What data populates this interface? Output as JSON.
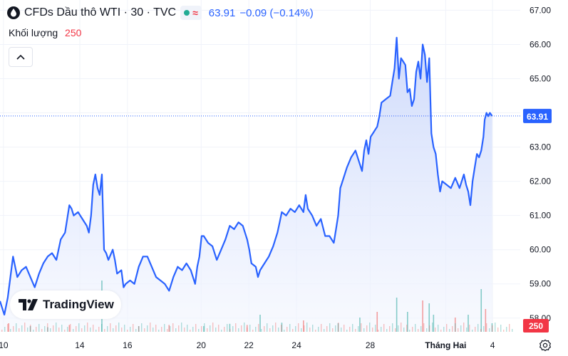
{
  "header": {
    "symbol_title": "CFDs Dầu thô WTI · 30 · TVC",
    "approx_symbol": "≈",
    "last_price": "63.91",
    "change": "−0.09 (−0.14%)",
    "volume_label": "Khối lượng",
    "volume_value": "250"
  },
  "logo_text": "TradingView",
  "icons": [
    "oil-drop-icon",
    "market-open-dot-icon",
    "chevron-up-icon",
    "tradingview-logo-icon",
    "gear-icon"
  ],
  "colors": {
    "line": "#2962ff",
    "fill_top": "#c9d6fb",
    "fill_bottom": "#f3f6fe",
    "up_volume": "#26a69a",
    "down_volume": "#ef5350",
    "axis_text": "#131722",
    "price_label_bg": "#2962ff",
    "volume_label_bg": "#f23645"
  },
  "chart_data": {
    "type": "area",
    "series_name": "",
    "ylim": [
      57.6,
      67.3
    ],
    "y_ticks": [
      "67.00",
      "66.00",
      "65.00",
      "64.00",
      "63.00",
      "62.00",
      "61.00",
      "60.00",
      "59.00",
      "58.00"
    ],
    "y_tick_values": [
      67,
      66,
      65,
      64,
      63,
      62,
      61,
      60,
      59,
      58
    ],
    "x_ticks": [
      "10",
      "14",
      "16",
      "20",
      "22",
      "24",
      "28",
      "Tháng Hai",
      "4"
    ],
    "x_tick_values": [
      0.08,
      1.84,
      2.94,
      4.64,
      5.74,
      6.84,
      8.54,
      10.28,
      11.36
    ],
    "last_value_label": "63.91",
    "last_volume_label": "250",
    "x_range": [
      0,
      12.0
    ],
    "points": [
      [
        0.0,
        58.5
      ],
      [
        0.05,
        58.3
      ],
      [
        0.1,
        58.1
      ],
      [
        0.18,
        58.6
      ],
      [
        0.25,
        59.3
      ],
      [
        0.3,
        59.8
      ],
      [
        0.35,
        59.5
      ],
      [
        0.4,
        59.2
      ],
      [
        0.5,
        59.4
      ],
      [
        0.6,
        59.5
      ],
      [
        0.7,
        59.2
      ],
      [
        0.8,
        58.9
      ],
      [
        0.9,
        59.3
      ],
      [
        1.0,
        59.6
      ],
      [
        1.1,
        59.8
      ],
      [
        1.2,
        59.9
      ],
      [
        1.3,
        59.7
      ],
      [
        1.4,
        60.3
      ],
      [
        1.5,
        60.5
      ],
      [
        1.55,
        60.9
      ],
      [
        1.6,
        61.3
      ],
      [
        1.65,
        61.2
      ],
      [
        1.7,
        61.0
      ],
      [
        1.8,
        61.1
      ],
      [
        1.9,
        60.9
      ],
      [
        2.0,
        60.7
      ],
      [
        2.05,
        60.5
      ],
      [
        2.1,
        61.0
      ],
      [
        2.15,
        61.9
      ],
      [
        2.2,
        62.2
      ],
      [
        2.25,
        61.8
      ],
      [
        2.3,
        61.6
      ],
      [
        2.35,
        62.2
      ],
      [
        2.4,
        60.0
      ],
      [
        2.45,
        59.9
      ],
      [
        2.5,
        59.7
      ],
      [
        2.6,
        60.0
      ],
      [
        2.65,
        59.7
      ],
      [
        2.7,
        59.3
      ],
      [
        2.8,
        59.4
      ],
      [
        2.85,
        58.9
      ],
      [
        2.9,
        59.0
      ],
      [
        3.0,
        59.1
      ],
      [
        3.1,
        59.0
      ],
      [
        3.2,
        59.5
      ],
      [
        3.3,
        59.8
      ],
      [
        3.4,
        59.8
      ],
      [
        3.5,
        59.5
      ],
      [
        3.6,
        59.2
      ],
      [
        3.7,
        59.1
      ],
      [
        3.8,
        59.0
      ],
      [
        3.9,
        58.8
      ],
      [
        4.0,
        59.2
      ],
      [
        4.1,
        59.5
      ],
      [
        4.2,
        59.4
      ],
      [
        4.3,
        59.6
      ],
      [
        4.4,
        59.4
      ],
      [
        4.5,
        59.0
      ],
      [
        4.55,
        59.5
      ],
      [
        4.6,
        59.8
      ],
      [
        4.65,
        60.4
      ],
      [
        4.7,
        60.4
      ],
      [
        4.8,
        60.2
      ],
      [
        4.9,
        60.1
      ],
      [
        5.0,
        59.7
      ],
      [
        5.1,
        60.0
      ],
      [
        5.2,
        60.3
      ],
      [
        5.3,
        60.7
      ],
      [
        5.4,
        60.6
      ],
      [
        5.5,
        60.8
      ],
      [
        5.6,
        60.7
      ],
      [
        5.7,
        60.3
      ],
      [
        5.75,
        60.0
      ],
      [
        5.8,
        59.6
      ],
      [
        5.9,
        59.5
      ],
      [
        5.95,
        59.2
      ],
      [
        6.0,
        59.4
      ],
      [
        6.1,
        59.6
      ],
      [
        6.2,
        59.8
      ],
      [
        6.3,
        60.1
      ],
      [
        6.4,
        60.5
      ],
      [
        6.45,
        60.8
      ],
      [
        6.5,
        61.1
      ],
      [
        6.6,
        61.0
      ],
      [
        6.7,
        61.2
      ],
      [
        6.8,
        61.1
      ],
      [
        6.9,
        61.3
      ],
      [
        7.0,
        61.1
      ],
      [
        7.05,
        61.6
      ],
      [
        7.1,
        61.2
      ],
      [
        7.2,
        61.0
      ],
      [
        7.3,
        60.7
      ],
      [
        7.4,
        60.9
      ],
      [
        7.5,
        60.4
      ],
      [
        7.6,
        60.4
      ],
      [
        7.7,
        60.2
      ],
      [
        7.75,
        60.6
      ],
      [
        7.8,
        61.0
      ],
      [
        7.85,
        61.8
      ],
      [
        7.9,
        62.0
      ],
      [
        8.0,
        62.4
      ],
      [
        8.1,
        62.7
      ],
      [
        8.15,
        62.8
      ],
      [
        8.2,
        62.9
      ],
      [
        8.3,
        62.5
      ],
      [
        8.35,
        62.3
      ],
      [
        8.4,
        62.9
      ],
      [
        8.45,
        63.2
      ],
      [
        8.5,
        62.8
      ],
      [
        8.55,
        63.3
      ],
      [
        8.6,
        63.4
      ],
      [
        8.7,
        63.6
      ],
      [
        8.75,
        63.9
      ],
      [
        8.8,
        64.3
      ],
      [
        8.9,
        64.4
      ],
      [
        9.0,
        64.5
      ],
      [
        9.05,
        64.9
      ],
      [
        9.1,
        65.3
      ],
      [
        9.15,
        66.2
      ],
      [
        9.2,
        65.0
      ],
      [
        9.25,
        65.6
      ],
      [
        9.3,
        65.5
      ],
      [
        9.35,
        65.4
      ],
      [
        9.4,
        64.6
      ],
      [
        9.45,
        64.7
      ],
      [
        9.5,
        64.2
      ],
      [
        9.55,
        64.4
      ],
      [
        9.6,
        65.2
      ],
      [
        9.65,
        65.5
      ],
      [
        9.7,
        65.0
      ],
      [
        9.75,
        66.0
      ],
      [
        9.8,
        65.7
      ],
      [
        9.85,
        64.9
      ],
      [
        9.9,
        65.6
      ],
      [
        9.95,
        63.4
      ],
      [
        10.0,
        63.0
      ],
      [
        10.05,
        62.8
      ],
      [
        10.1,
        62.2
      ],
      [
        10.15,
        61.7
      ],
      [
        10.2,
        62.0
      ],
      [
        10.3,
        61.9
      ],
      [
        10.4,
        61.8
      ],
      [
        10.5,
        62.1
      ],
      [
        10.6,
        61.8
      ],
      [
        10.7,
        62.2
      ],
      [
        10.75,
        61.9
      ],
      [
        10.8,
        61.7
      ],
      [
        10.85,
        61.3
      ],
      [
        10.9,
        62.0
      ],
      [
        10.95,
        62.4
      ],
      [
        11.0,
        62.8
      ],
      [
        11.05,
        62.7
      ],
      [
        11.1,
        62.9
      ],
      [
        11.15,
        63.3
      ],
      [
        11.18,
        63.8
      ],
      [
        11.22,
        64.0
      ],
      [
        11.26,
        63.9
      ],
      [
        11.3,
        64.0
      ],
      [
        11.35,
        63.91
      ]
    ],
    "volume_bars": [
      [
        0.2,
        0.15
      ],
      [
        0.7,
        0.1
      ],
      [
        1.1,
        0.08
      ],
      [
        1.6,
        0.12
      ],
      [
        2.35,
        0.9
      ],
      [
        3.2,
        0.1
      ],
      [
        3.9,
        0.12
      ],
      [
        4.7,
        0.1
      ],
      [
        5.3,
        0.14
      ],
      [
        5.7,
        0.12
      ],
      [
        6.0,
        0.3
      ],
      [
        6.5,
        0.16
      ],
      [
        7.0,
        0.2
      ],
      [
        7.8,
        0.15
      ],
      [
        8.3,
        0.25
      ],
      [
        8.7,
        0.35
      ],
      [
        9.15,
        0.6
      ],
      [
        9.4,
        0.35
      ],
      [
        9.75,
        0.55
      ],
      [
        9.9,
        0.5
      ],
      [
        10.0,
        0.3
      ],
      [
        10.5,
        0.25
      ],
      [
        10.8,
        0.3
      ],
      [
        11.1,
        0.75
      ],
      [
        11.2,
        0.4
      ],
      [
        11.35,
        0.15
      ]
    ]
  }
}
